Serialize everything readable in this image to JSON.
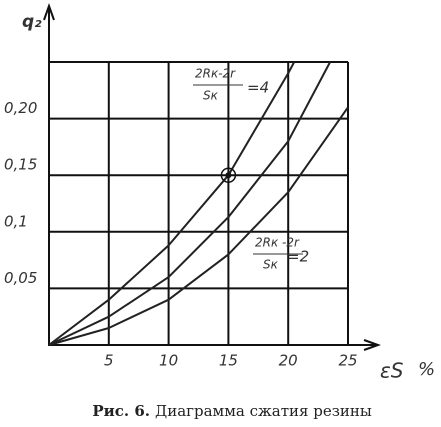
{
  "chart_data": {
    "type": "line",
    "y_label": "q₂",
    "x_label": "εS",
    "x_unit": "%",
    "caption_prefix": "Рис. 6.",
    "caption": "Диаграмма сжатия резины",
    "xlim": [
      0,
      25
    ],
    "ylim": [
      0,
      0.25
    ],
    "xticks": [
      5,
      10,
      15,
      20,
      25
    ],
    "yticks": [
      {
        "value": 0.05,
        "label": "0,05"
      },
      {
        "value": 0.1,
        "label": "0,1"
      },
      {
        "value": 0.15,
        "label": "0,15"
      },
      {
        "value": 0.2,
        "label": "0,20"
      }
    ],
    "grid": true,
    "series": [
      {
        "color": "#222222",
        "x": [
          0,
          5,
          10,
          15,
          20,
          20.5
        ],
        "values": [
          0,
          0.04,
          0.088,
          0.15,
          0.24,
          0.25
        ]
      },
      {
        "color": "#222222",
        "x": [
          0,
          5,
          10,
          15,
          20,
          23.5
        ],
        "values": [
          0,
          0.025,
          0.06,
          0.113,
          0.18,
          0.25
        ]
      },
      {
        "color": "#222222",
        "x": [
          0,
          5,
          10,
          15,
          20,
          25
        ],
        "values": [
          0,
          0.015,
          0.04,
          0.08,
          0.135,
          0.21
        ]
      }
    ],
    "highlight": {
      "series": 0,
      "index": 3
    },
    "annotations": [
      {
        "numerator": "2Rк-2r",
        "denominator": "Sк",
        "value": "=4"
      },
      {
        "numerator": "2Rк -2r",
        "denominator": "Sк",
        "value": "=2"
      }
    ]
  }
}
